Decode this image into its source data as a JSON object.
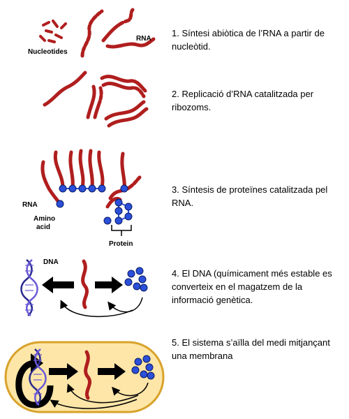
{
  "labels": {
    "nucleotides": "Nucleotides",
    "rna_1": "RNA",
    "rna_3": "RNA",
    "amino_acid": [
      "Amino",
      "acid"
    ],
    "protein": "Protein",
    "dna": "DNA"
  },
  "steps": [
    {
      "text": "1. Síntesi abiòtica de l’RNA a partir de nucleòtid."
    },
    {
      "text": "2. Replicació d’RNA catalitzada per ribozoms."
    },
    {
      "text": "3. Síntesis de proteïnes catalitzada pel RNA."
    },
    {
      "text": "4. El DNA (químicament més estable es converteix en el magatzem de la informació genètica."
    },
    {
      "text": "5. El sistema s’aïlla del medi mitjançant una membrana"
    }
  ],
  "colors": {
    "rna": "#b01e1e",
    "rna_tip": "#4a0a0a",
    "amino_acid": "#2a4fd8",
    "dna_strand_a": "#2a2a90",
    "dna_strand_b": "#6a5ad8",
    "arrow": "#000000",
    "membrane_fill": "#fde6a8",
    "membrane_stroke": "#d8a22a"
  }
}
